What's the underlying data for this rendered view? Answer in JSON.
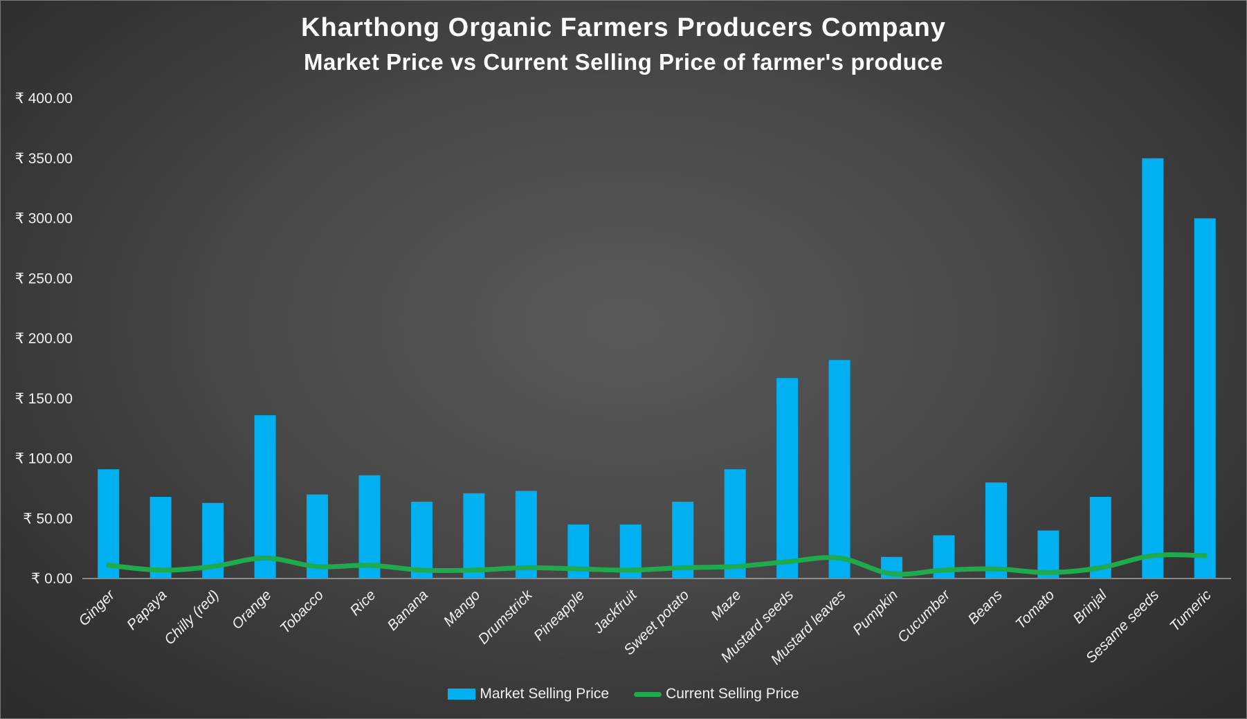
{
  "chart_data": {
    "type": "bar",
    "title": "Kharthong Organic Farmers Producers Company",
    "subtitle": "Market Price vs Current Selling Price of farmer's produce",
    "categories": [
      "Ginger",
      "Papaya",
      "Chilly (red)",
      "Orange",
      "Tobacco",
      "Rice",
      "Banana",
      "Mango",
      "Drumstrick",
      "Pineapple",
      "Jackfruit",
      "Sweet potato",
      "Maze",
      "Mustard seeds",
      "Mustard leaves",
      "Pumpkin",
      "Cucumber",
      "Beans",
      "Tomato",
      "Brinjal",
      "Sesame seeds",
      "Tumeric"
    ],
    "series": [
      {
        "name": "Market Selling Price",
        "kind": "bar",
        "color": "#00B0F0",
        "values": [
          91,
          68,
          63,
          136,
          70,
          86,
          64,
          71,
          73,
          45,
          45,
          64,
          91,
          167,
          182,
          18,
          36,
          80,
          40,
          68,
          350,
          300
        ]
      },
      {
        "name": "Current Selling Price",
        "kind": "line",
        "color": "#1FAA4E",
        "values": [
          11,
          7,
          10,
          17,
          10,
          11,
          7,
          7,
          9,
          8,
          7,
          9,
          10,
          14,
          17,
          4,
          7,
          8,
          5,
          9,
          19,
          19
        ]
      }
    ],
    "yticks": [
      "₹ 400.00",
      "₹ 350.00",
      "₹ 300.00",
      "₹ 250.00",
      "₹ 200.00",
      "₹ 150.00",
      "₹ 100.00",
      "₹ 50.00",
      "₹ 0.00"
    ],
    "ylim": [
      0,
      400
    ],
    "legend_position": "bottom",
    "grid": false
  }
}
